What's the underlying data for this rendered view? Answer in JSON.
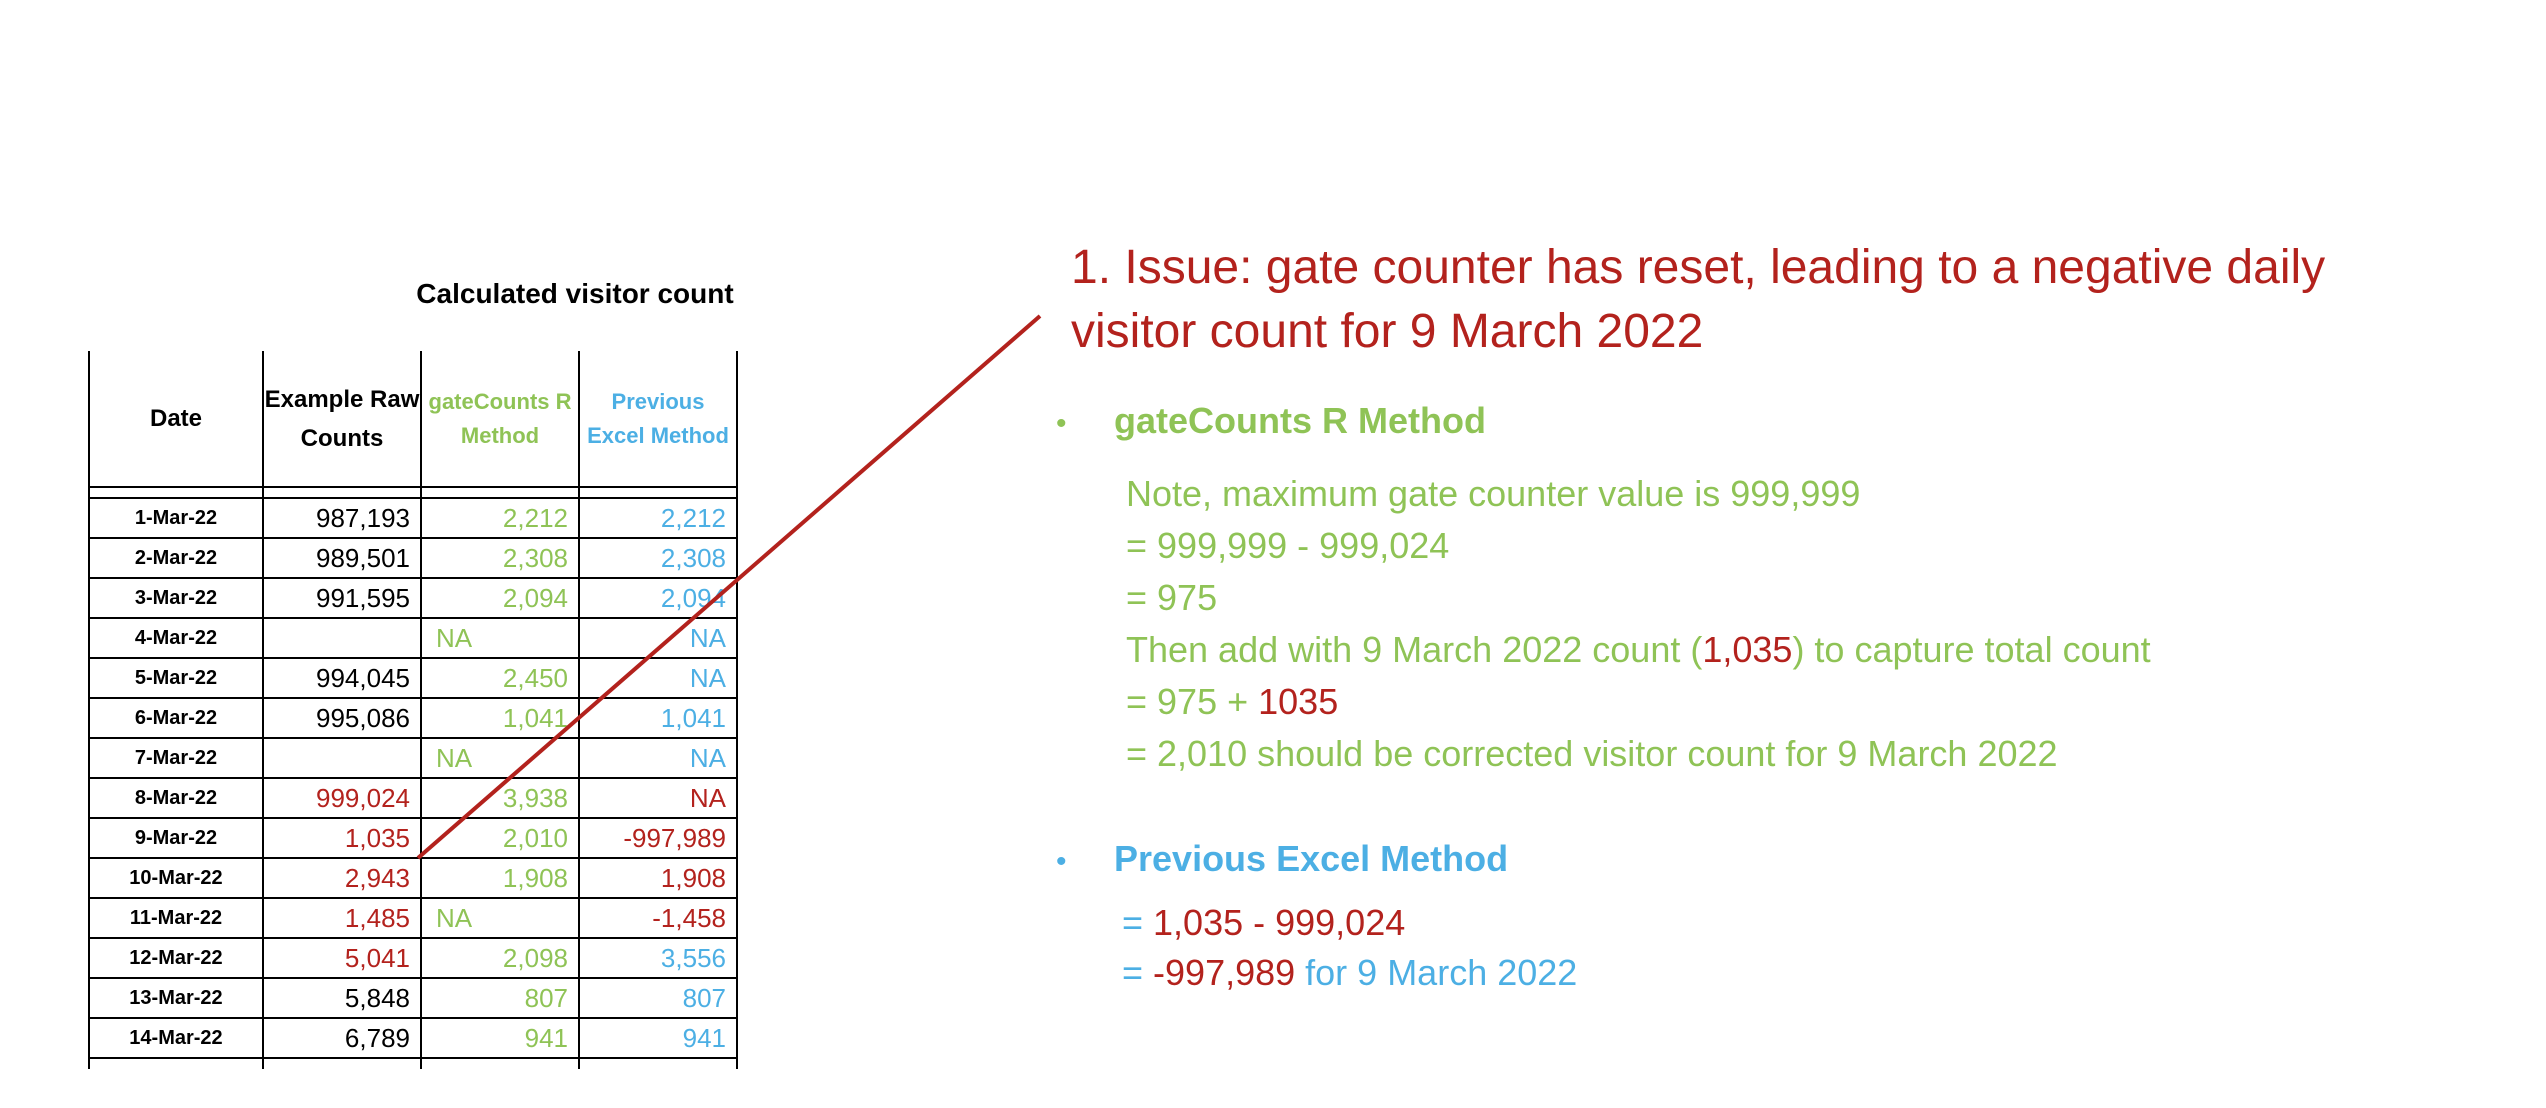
{
  "table": {
    "group_header": "Calculated visitor count",
    "columns": {
      "date": "Date",
      "raw": "Example Raw Counts",
      "r_method": "gateCounts R Method",
      "excel_method": "Previous Excel Method"
    },
    "rows": [
      {
        "date": "1-Mar-22",
        "raw": "987,193",
        "r": "2,212",
        "excel": "2,212"
      },
      {
        "date": "2-Mar-22",
        "raw": "989,501",
        "r": "2,308",
        "excel": "2,308"
      },
      {
        "date": "3-Mar-22",
        "raw": "991,595",
        "r": "2,094",
        "excel": "2,094"
      },
      {
        "date": "4-Mar-22",
        "raw": "",
        "r": "NA",
        "excel": "NA"
      },
      {
        "date": "5-Mar-22",
        "raw": "994,045",
        "r": "2,450",
        "excel": "NA"
      },
      {
        "date": "6-Mar-22",
        "raw": "995,086",
        "r": "1,041",
        "excel": "1,041"
      },
      {
        "date": "7-Mar-22",
        "raw": "",
        "r": "NA",
        "excel": "NA"
      },
      {
        "date": "8-Mar-22",
        "raw": "999,024",
        "r": "3,938",
        "excel": "NA"
      },
      {
        "date": "9-Mar-22",
        "raw": "1,035",
        "r": "2,010",
        "excel": "-997,989"
      },
      {
        "date": "10-Mar-22",
        "raw": "2,943",
        "r": "1,908",
        "excel": "1,908"
      },
      {
        "date": "11-Mar-22",
        "raw": "1,485",
        "r": "NA",
        "excel": "-1,458"
      },
      {
        "date": "12-Mar-22",
        "raw": "5,041",
        "r": "2,098",
        "excel": "3,556"
      },
      {
        "date": "13-Mar-22",
        "raw": "5,848",
        "r": "807",
        "excel": "807"
      },
      {
        "date": "14-Mar-22",
        "raw": "6,789",
        "r": "941",
        "excel": "941"
      }
    ]
  },
  "issue_title": "1. Issue: gate counter has reset, leading to a negative daily visitor count for 9 March 2022",
  "r_method": {
    "heading": "gateCounts R Method",
    "note": "Note, maximum gate counter value is 999,999",
    "line1": "= 999,999 - 999,024",
    "line2": "= 975",
    "then_prefix": "Then add with 9 March 2022 count (",
    "then_value": "1,035",
    "then_suffix": ") to capture total count",
    "sum_prefix": "= 975 + ",
    "sum_value": "1035",
    "result": "= 2,010 should be corrected visitor count for 9 March 2022"
  },
  "excel_method": {
    "heading": "Previous Excel Method",
    "eq1_prefix": "= ",
    "eq1_value": "1,035 - 999,024",
    "eq2_prefix": "= ",
    "eq2_value": "-997,989",
    "eq2_suffix": " for 9 March 2022"
  },
  "colors": {
    "r_method": "#8fc356",
    "excel_method": "#4cafe4",
    "issue": "#b3221d",
    "connector": "#b3221d"
  }
}
